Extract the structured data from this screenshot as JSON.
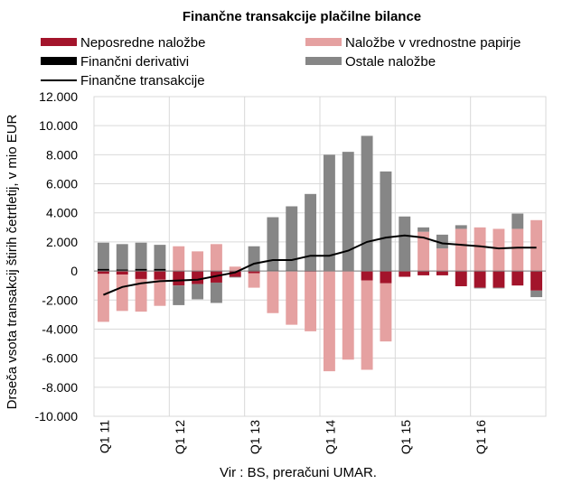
{
  "chart_data": {
    "type": "bar",
    "subtype": "stacked bar with line overlay",
    "title": "Finančne transakcije plačilne bilance",
    "ylabel": "Drseča vsota transakcij štirih četrtletij, v mio EUR",
    "xlabel": "",
    "source": "Vir : BS, preračuni UMAR.",
    "ylim": [
      -10000,
      12000
    ],
    "ytick_step": 2000,
    "ytick_labels": [
      "-10.000",
      "-8.000",
      "-6.000",
      "-4.000",
      "-2.000",
      "0",
      "2.000",
      "4.000",
      "6.000",
      "8.000",
      "10.000",
      "12.000"
    ],
    "grid": true,
    "legend_position": "top",
    "categories": [
      "Q1 11",
      "Q2 11",
      "Q3 11",
      "Q4 11",
      "Q1 12",
      "Q2 12",
      "Q3 12",
      "Q4 12",
      "Q1 13",
      "Q2 13",
      "Q3 13",
      "Q4 13",
      "Q1 14",
      "Q2 14",
      "Q3 14",
      "Q4 14",
      "Q1 15",
      "Q2 15",
      "Q3 15",
      "Q4 15",
      "Q1 16",
      "Q2 16",
      "Q3 16",
      "Q4 16"
    ],
    "x_tick_labels": [
      {
        "index": 0,
        "label": "Q1 11"
      },
      {
        "index": 4,
        "label": "Q1 12"
      },
      {
        "index": 8,
        "label": "Q1 13"
      },
      {
        "index": 12,
        "label": "Q1 14"
      },
      {
        "index": 16,
        "label": "Q1 15"
      },
      {
        "index": 20,
        "label": "Q1 16"
      }
    ],
    "series": [
      {
        "name": "Neposredne naložbe",
        "kind": "bar",
        "color": "#a3142b",
        "values": [
          -200,
          -250,
          -550,
          -600,
          -1000,
          -900,
          -800,
          -400,
          -150,
          0,
          0,
          -50,
          0,
          0,
          -650,
          -850,
          -400,
          -300,
          -300,
          -1050,
          -1150,
          -1150,
          -1000,
          -1350
        ]
      },
      {
        "name": "Naložbe v vrednostne papirje",
        "kind": "bar",
        "color": "#e5a1a1",
        "values": [
          -3300,
          -2500,
          -2250,
          -1800,
          1700,
          1350,
          1850,
          300,
          -1000,
          -2900,
          -3700,
          -4100,
          -6900,
          -6100,
          -6150,
          -4000,
          0,
          2700,
          1550,
          2900,
          3000,
          2900,
          2900,
          3500
        ]
      },
      {
        "name": "Finančni derivativi",
        "kind": "bar",
        "color": "#000000",
        "values": [
          150,
          100,
          150,
          150,
          0,
          0,
          0,
          0,
          50,
          50,
          50,
          0,
          0,
          0,
          0,
          0,
          0,
          0,
          0,
          0,
          0,
          0,
          0,
          0
        ]
      },
      {
        "name": "Ostale naložbe",
        "kind": "bar",
        "color": "#868686",
        "values": [
          1800,
          1750,
          1800,
          1650,
          -1350,
          -1050,
          -1400,
          -50,
          1650,
          3650,
          4400,
          5300,
          8000,
          8200,
          9300,
          6850,
          3750,
          300,
          950,
          250,
          -50,
          -50,
          1050,
          -450
        ]
      },
      {
        "name": "Finančne transakcije",
        "kind": "line",
        "color": "#000000",
        "values": [
          -1650,
          -1100,
          -850,
          -700,
          -650,
          -600,
          -350,
          -100,
          500,
          750,
          750,
          1050,
          1050,
          1400,
          2000,
          2300,
          2450,
          2300,
          1900,
          1800,
          1700,
          1550,
          1600,
          1600
        ]
      }
    ]
  }
}
